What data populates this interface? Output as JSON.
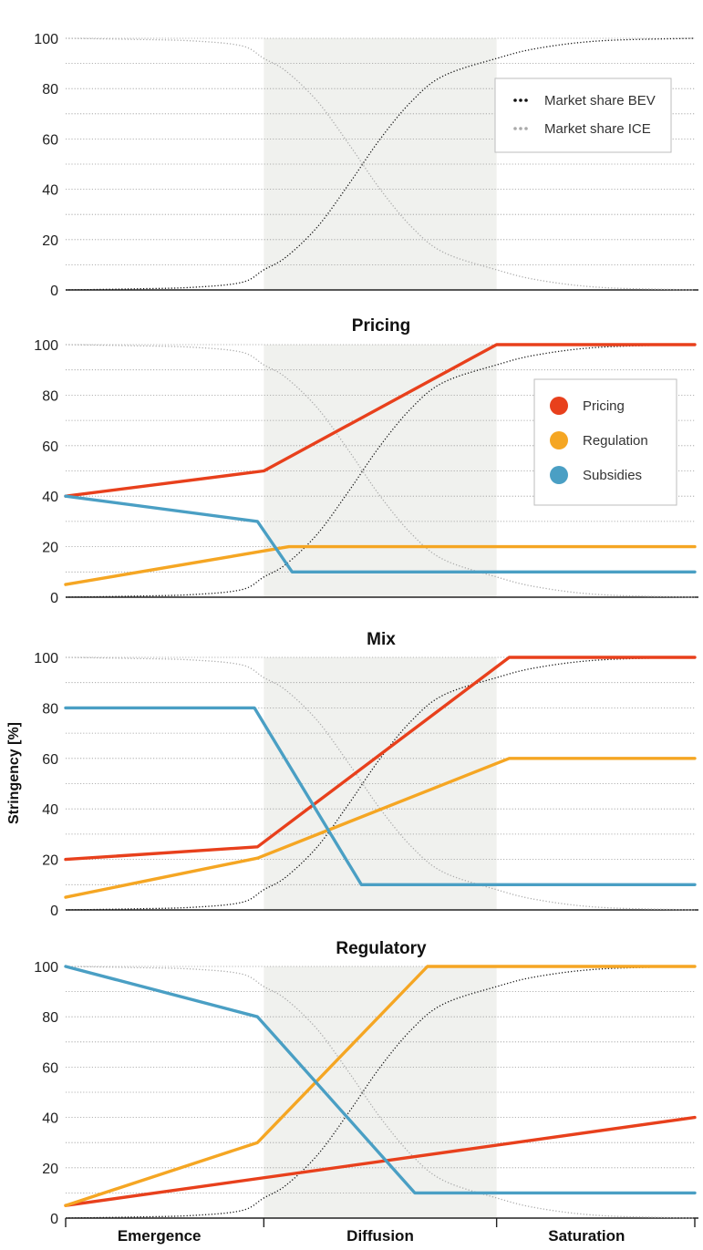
{
  "chart_data": {
    "type": "line",
    "ylabel": "Stringency [%]",
    "ylim": [
      0,
      100
    ],
    "yticks": [
      "0",
      "20",
      "40",
      "60",
      "80",
      "100"
    ],
    "phases": [
      "Emergence",
      "Diffusion",
      "Saturation"
    ],
    "colors": {
      "pricing": "#e8401c",
      "regulation": "#f5a623",
      "subsidies": "#4a9fc4",
      "bev": "#111111",
      "ice": "#aaaaaa",
      "shade": "#f0f1ee"
    },
    "market_share": {
      "legend": [
        {
          "key": "bev",
          "label": "Market share BEV"
        },
        {
          "key": "ice",
          "label": "Market share ICE"
        }
      ],
      "bev": [
        [
          0,
          0
        ],
        [
          10,
          0.4
        ],
        [
          20,
          1
        ],
        [
          28,
          3
        ],
        [
          31.5,
          8
        ],
        [
          35,
          13
        ],
        [
          40,
          25
        ],
        [
          45,
          42
        ],
        [
          50,
          60
        ],
        [
          55,
          75
        ],
        [
          60,
          85
        ],
        [
          68.5,
          92
        ],
        [
          75,
          96
        ],
        [
          85,
          99
        ],
        [
          100,
          100
        ]
      ],
      "ice": [
        [
          0,
          100
        ],
        [
          10,
          99.6
        ],
        [
          20,
          99
        ],
        [
          28,
          97
        ],
        [
          31.5,
          92
        ],
        [
          35,
          87
        ],
        [
          40,
          75
        ],
        [
          45,
          58
        ],
        [
          50,
          40
        ],
        [
          55,
          25
        ],
        [
          60,
          15
        ],
        [
          68.5,
          8
        ],
        [
          75,
          4
        ],
        [
          85,
          1
        ],
        [
          100,
          0
        ]
      ]
    },
    "panels": [
      {
        "title": "",
        "show_market_legend": true,
        "series": []
      },
      {
        "title": "Pricing",
        "show_policy_legend": true,
        "series": [
          {
            "name": "Pricing",
            "key": "pricing",
            "points": [
              [
                0,
                40
              ],
              [
                31.5,
                50
              ],
              [
                68.5,
                100
              ],
              [
                100,
                100
              ]
            ]
          },
          {
            "name": "Regulation",
            "key": "regulation",
            "points": [
              [
                0,
                5
              ],
              [
                35.5,
                20
              ],
              [
                100,
                20
              ]
            ]
          },
          {
            "name": "Subsidies",
            "key": "subsidies",
            "points": [
              [
                0,
                40
              ],
              [
                30.5,
                30
              ],
              [
                36,
                10
              ],
              [
                100,
                10
              ]
            ]
          }
        ]
      },
      {
        "title": "Mix",
        "series": [
          {
            "name": "Pricing",
            "key": "pricing",
            "points": [
              [
                0,
                20
              ],
              [
                30.5,
                25
              ],
              [
                70.5,
                100
              ],
              [
                100,
                100
              ]
            ]
          },
          {
            "name": "Regulation",
            "key": "regulation",
            "points": [
              [
                0,
                5
              ],
              [
                30.5,
                20.5
              ],
              [
                70.5,
                60
              ],
              [
                100,
                60
              ]
            ]
          },
          {
            "name": "Subsidies",
            "key": "subsidies",
            "points": [
              [
                0,
                80
              ],
              [
                30,
                80
              ],
              [
                47,
                10
              ],
              [
                100,
                10
              ]
            ]
          }
        ]
      },
      {
        "title": "Regulatory",
        "series": [
          {
            "name": "Pricing",
            "key": "pricing",
            "points": [
              [
                0,
                5
              ],
              [
                100,
                40
              ]
            ]
          },
          {
            "name": "Regulation",
            "key": "regulation",
            "points": [
              [
                0,
                5
              ],
              [
                30.5,
                30
              ],
              [
                57.5,
                100
              ],
              [
                100,
                100
              ]
            ]
          },
          {
            "name": "Subsidies",
            "key": "subsidies",
            "points": [
              [
                0,
                100
              ],
              [
                30.5,
                80
              ],
              [
                55.5,
                10
              ],
              [
                100,
                10
              ]
            ]
          }
        ]
      }
    ],
    "legend": [
      "Pricing",
      "Regulation",
      "Subsidies"
    ]
  }
}
